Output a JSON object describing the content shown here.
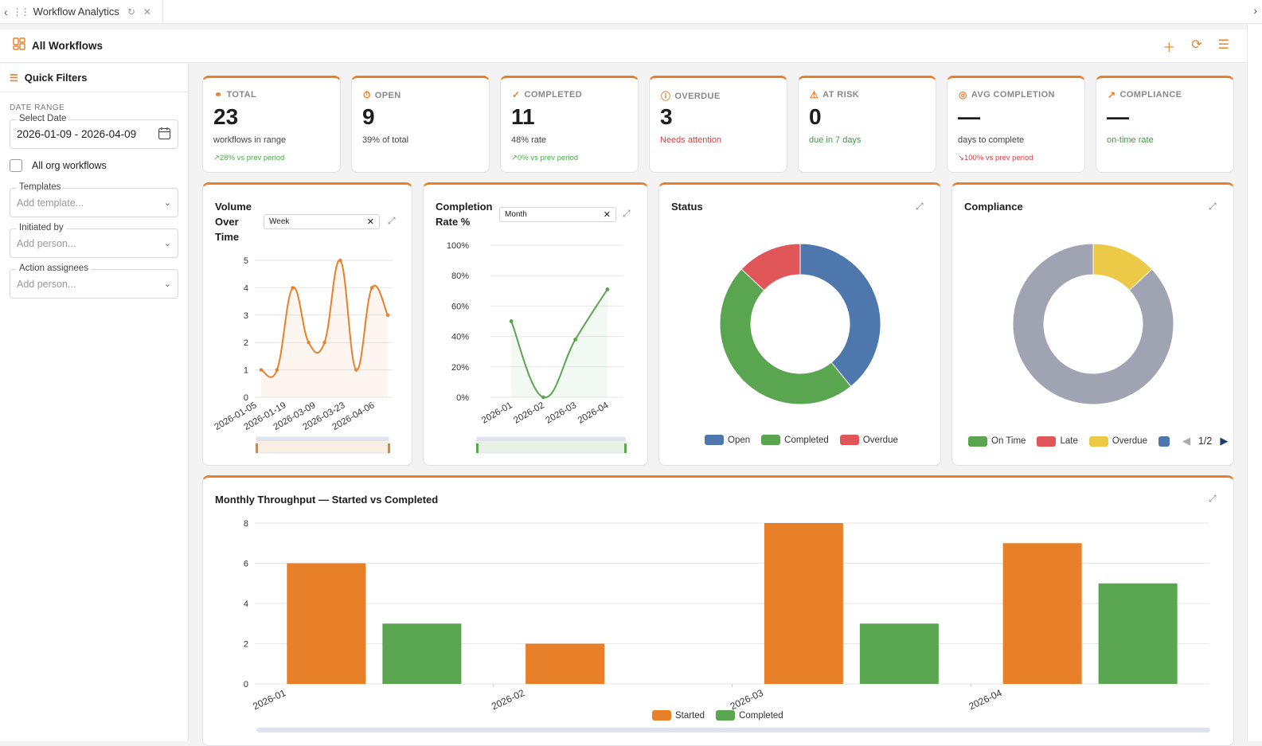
{
  "tab": {
    "title": "Workflow Analytics"
  },
  "header": {
    "title": "All Workflows"
  },
  "sidebar": {
    "title": "Quick Filters",
    "date_range_label": "DATE RANGE",
    "date_field_label": "Select Date",
    "date_value": "2026-01-09 - 2026-04-09",
    "all_org_label": "All org workflows",
    "templates_label": "Templates",
    "templates_placeholder": "Add template...",
    "initiated_label": "Initiated by",
    "initiated_placeholder": "Add person...",
    "assignees_label": "Action assignees",
    "assignees_placeholder": "Add person..."
  },
  "kpis": [
    {
      "label": "TOTAL",
      "value": "23",
      "sub": "workflows in range",
      "trend": "28% vs prev period"
    },
    {
      "label": "OPEN",
      "value": "9",
      "sub": "39% of total",
      "trend": ""
    },
    {
      "label": "COMPLETED",
      "value": "11",
      "sub": "48% rate",
      "trend": "0% vs prev period"
    },
    {
      "label": "OVERDUE",
      "value": "3",
      "sub": "Needs attention",
      "trend": ""
    },
    {
      "label": "AT RISK",
      "value": "0",
      "sub": "due in 7 days",
      "trend": ""
    },
    {
      "label": "AVG COMPLETION",
      "value": "—",
      "sub": "days to complete",
      "trend": "100% vs prev period"
    },
    {
      "label": "COMPLIANCE",
      "value": "—",
      "sub": "on-time rate",
      "trend": ""
    }
  ],
  "volume": {
    "title": "Volume Over Time",
    "select": "Week"
  },
  "completion": {
    "title": "Completion Rate %",
    "select": "Month"
  },
  "status": {
    "title": "Status"
  },
  "compliance": {
    "title": "Compliance",
    "pager": "1/2"
  },
  "throughput": {
    "title": "Monthly Throughput — Started vs Completed"
  },
  "colors": {
    "accent": "#e8802a",
    "green": "#5aa550",
    "blue": "#4e78ad",
    "red": "#e15759",
    "yellow": "#edc948",
    "gray": "#a0a3b1"
  },
  "chart_data": [
    {
      "type": "line",
      "title": "Volume Over Time",
      "x": [
        "2026-01-05",
        "2026-01-12",
        "2026-01-19",
        "2026-01-26",
        "2026-03-09",
        "2026-03-16",
        "2026-03-23",
        "2026-03-30",
        "2026-04-06"
      ],
      "x_tick_labels": [
        "2026-01-05",
        "2026-01-19",
        "2026-03-09",
        "2026-03-23",
        "2026-04-06"
      ],
      "values": [
        1,
        1,
        4,
        2,
        2,
        5,
        1,
        4,
        3
      ],
      "ylim": [
        0,
        5
      ],
      "y_ticks": [
        "0",
        "1",
        "2",
        "3",
        "4",
        "5"
      ]
    },
    {
      "type": "line",
      "title": "Completion Rate %",
      "x": [
        "2026-01",
        "2026-02",
        "2026-03",
        "2026-04"
      ],
      "values": [
        50,
        0,
        38,
        71
      ],
      "ylim": [
        0,
        100
      ],
      "y_ticks": [
        "0%",
        "20%",
        "40%",
        "60%",
        "80%",
        "100%"
      ]
    },
    {
      "type": "pie",
      "title": "Status",
      "categories": [
        "Open",
        "Completed",
        "Overdue"
      ],
      "values": [
        9,
        11,
        3
      ],
      "colors": [
        "#4e78ad",
        "#5aa550",
        "#e15759"
      ]
    },
    {
      "type": "pie",
      "title": "Compliance",
      "categories": [
        "On Time",
        "Late",
        "Overdue"
      ],
      "values": [
        0,
        0,
        3
      ],
      "other_value": 20,
      "colors": [
        "#5aa550",
        "#e15759",
        "#edc948",
        "#a0a3b1"
      ]
    },
    {
      "type": "bar",
      "title": "Monthly Throughput — Started vs Completed",
      "categories": [
        "2026-01",
        "2026-02",
        "2026-03",
        "2026-04"
      ],
      "series": [
        {
          "name": "Started",
          "values": [
            6,
            2,
            8,
            7
          ],
          "color": "#e8802a"
        },
        {
          "name": "Completed",
          "values": [
            3,
            0,
            3,
            5
          ],
          "color": "#5aa550"
        }
      ],
      "ylim": [
        0,
        8
      ],
      "y_ticks": [
        "0",
        "2",
        "4",
        "6",
        "8"
      ]
    }
  ]
}
